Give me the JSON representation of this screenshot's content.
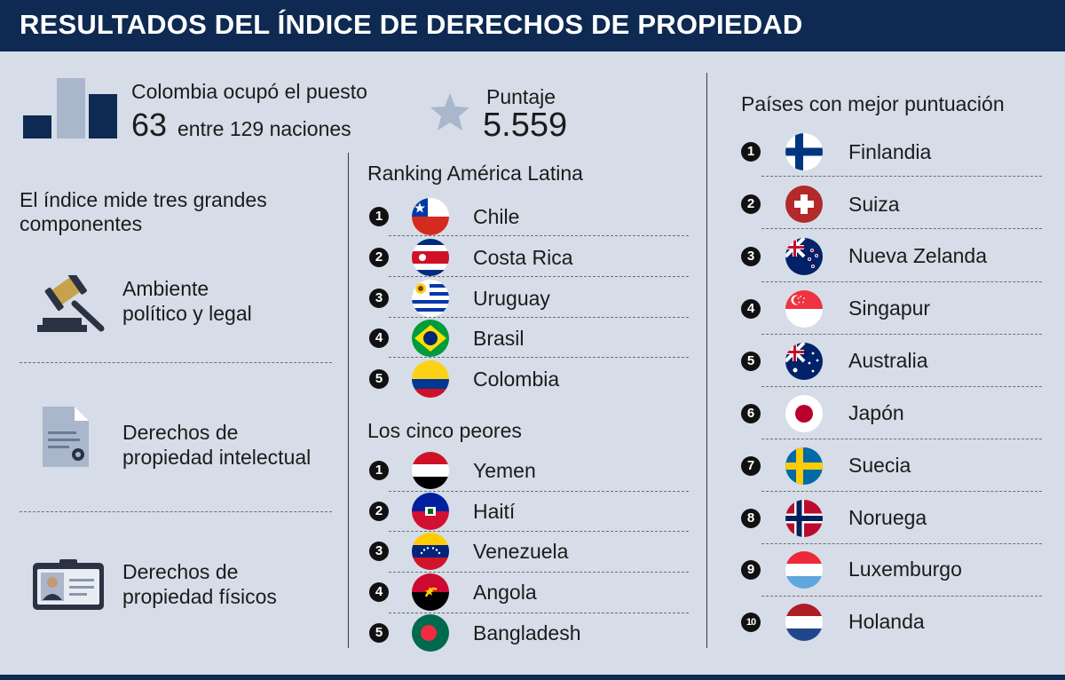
{
  "header": {
    "title": "RESULTADOS DEL ÍNDICE DE DERECHOS DE PROPIEDAD"
  },
  "stats": {
    "rank_line1": "Colombia ocupó el puesto",
    "rank_value": "63",
    "rank_line2": "entre 129 naciones",
    "score_label": "Puntaje",
    "score_value": "5.559",
    "bar_icon_colors": [
      "#0e2a52",
      "#aab6cb",
      "#0e2a52"
    ]
  },
  "components": {
    "title": "El índice mide tres grandes componentes",
    "items": [
      {
        "icon": "gavel-icon",
        "line1": "Ambiente",
        "line2": "político y legal"
      },
      {
        "icon": "document-icon",
        "line1": "Derechos de",
        "line2": "propiedad intelectual"
      },
      {
        "icon": "id-card-icon",
        "line1": "Derechos de",
        "line2": "propiedad físicos"
      }
    ]
  },
  "latam": {
    "title": "Ranking América Latina",
    "items": [
      {
        "rank": "1",
        "country": "Chile",
        "flag": "chile-flag-icon"
      },
      {
        "rank": "2",
        "country": "Costa Rica",
        "flag": "costa-rica-flag-icon"
      },
      {
        "rank": "3",
        "country": "Uruguay",
        "flag": "uruguay-flag-icon"
      },
      {
        "rank": "4",
        "country": "Brasil",
        "flag": "brazil-flag-icon"
      },
      {
        "rank": "5",
        "country": "Colombia",
        "flag": "colombia-flag-icon"
      }
    ]
  },
  "worst": {
    "title": "Los cinco peores",
    "items": [
      {
        "rank": "1",
        "country": "Yemen",
        "flag": "yemen-flag-icon"
      },
      {
        "rank": "2",
        "country": "Haití",
        "flag": "haiti-flag-icon"
      },
      {
        "rank": "3",
        "country": "Venezuela",
        "flag": "venezuela-flag-icon"
      },
      {
        "rank": "4",
        "country": "Angola",
        "flag": "angola-flag-icon"
      },
      {
        "rank": "5",
        "country": "Bangladesh",
        "flag": "bangladesh-flag-icon"
      }
    ]
  },
  "best": {
    "title": "Países con mejor puntuación",
    "items": [
      {
        "rank": "1",
        "country": "Finlandia",
        "flag": "finland-flag-icon"
      },
      {
        "rank": "2",
        "country": "Suiza",
        "flag": "switzerland-flag-icon"
      },
      {
        "rank": "3",
        "country": "Nueva Zelanda",
        "flag": "new-zealand-flag-icon"
      },
      {
        "rank": "4",
        "country": "Singapur",
        "flag": "singapore-flag-icon"
      },
      {
        "rank": "5",
        "country": "Australia",
        "flag": "australia-flag-icon"
      },
      {
        "rank": "6",
        "country": "Japón",
        "flag": "japan-flag-icon"
      },
      {
        "rank": "7",
        "country": "Suecia",
        "flag": "sweden-flag-icon"
      },
      {
        "rank": "8",
        "country": "Noruega",
        "flag": "norway-flag-icon"
      },
      {
        "rank": "9",
        "country": "Luxemburgo",
        "flag": "luxembourg-flag-icon"
      },
      {
        "rank": "10",
        "country": "Holanda",
        "flag": "netherlands-flag-icon"
      }
    ]
  }
}
